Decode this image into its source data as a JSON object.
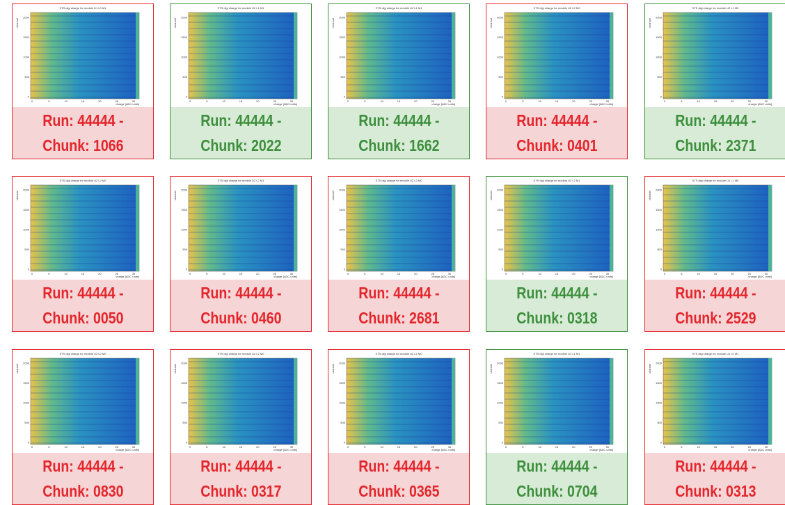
{
  "plot": {
    "y_label": "channel",
    "x_label": "charge [ADC units]",
    "xticks": [
      0,
      5,
      10,
      15,
      20,
      25,
      30
    ],
    "yticks": [
      0,
      500,
      1000,
      1500,
      2000
    ]
  },
  "cards": [
    {
      "title": "STS digi charge for module U1 L0 M1",
      "run": "Run: 44444 -",
      "chunk": "Chunk: 1066",
      "color": "#e3262c",
      "fill": "#f6d5d6"
    },
    {
      "title": "STS digi charge for module U2 L1 M1",
      "run": "Run: 44444 -",
      "chunk": "Chunk: 2022",
      "color": "#3d8f3d",
      "fill": "#d8ebd6"
    },
    {
      "title": "STS digi charge for module U2 L1 M1",
      "run": "Run: 44444 -",
      "chunk": "Chunk: 1662",
      "color": "#3d8f3d",
      "fill": "#d8ebd6"
    },
    {
      "title": "STS digi charge for module U2 L2 M0",
      "run": "Run: 44444 -",
      "chunk": "Chunk: 0401",
      "color": "#e3262c",
      "fill": "#f6d5d6"
    },
    {
      "title": "STS digi charge for module U2 L1 M0",
      "run": "Run: 44444 -",
      "chunk": "Chunk: 2371",
      "color": "#3d8f3d",
      "fill": "#d8ebd6"
    },
    {
      "title": "STS digi charge for module U2 L2 M0",
      "run": "Run: 44444 -",
      "chunk": "Chunk: 0050",
      "color": "#e3262c",
      "fill": "#f6d5d6"
    },
    {
      "title": "STS digi charge for module U2 L2 M1",
      "run": "Run: 44444 -",
      "chunk": "Chunk: 0460",
      "color": "#e3262c",
      "fill": "#f6d5d6"
    },
    {
      "title": "STS digi charge for module U2 L2 M0",
      "run": "Run: 44444 -",
      "chunk": "Chunk: 2681",
      "color": "#e3262c",
      "fill": "#f6d5d6"
    },
    {
      "title": "STS digi charge for module U2 L2 M1",
      "run": "Run: 44444 -",
      "chunk": "Chunk: 0318",
      "color": "#3d8f3d",
      "fill": "#d8ebd6"
    },
    {
      "title": "STS digi charge for module U1 L1 M0",
      "run": "Run: 44444 -",
      "chunk": "Chunk: 2529",
      "color": "#e3262c",
      "fill": "#f6d5d6"
    },
    {
      "title": "STS digi charge for module U2 L0 M0",
      "run": "Run: 44444 -",
      "chunk": "Chunk: 0830",
      "color": "#e3262c",
      "fill": "#f6d5d6"
    },
    {
      "title": "STS digi charge for module U2 L2 M0",
      "run": "Run: 44444 -",
      "chunk": "Chunk: 0317",
      "color": "#e3262c",
      "fill": "#f6d5d6"
    },
    {
      "title": "STS digi charge for module U2 L2 M0",
      "run": "Run: 44444 -",
      "chunk": "Chunk: 0365",
      "color": "#e3262c",
      "fill": "#f6d5d6"
    },
    {
      "title": "STS digi charge for module U1 L1 M1",
      "run": "Run: 44444 -",
      "chunk": "Chunk: 0704",
      "color": "#3d8f3d",
      "fill": "#d8ebd6"
    },
    {
      "title": "STS digi charge for module U1 L0 M1",
      "run": "Run: 44444 -",
      "chunk": "Chunk: 0313",
      "color": "#e3262c",
      "fill": "#f6d5d6"
    }
  ]
}
